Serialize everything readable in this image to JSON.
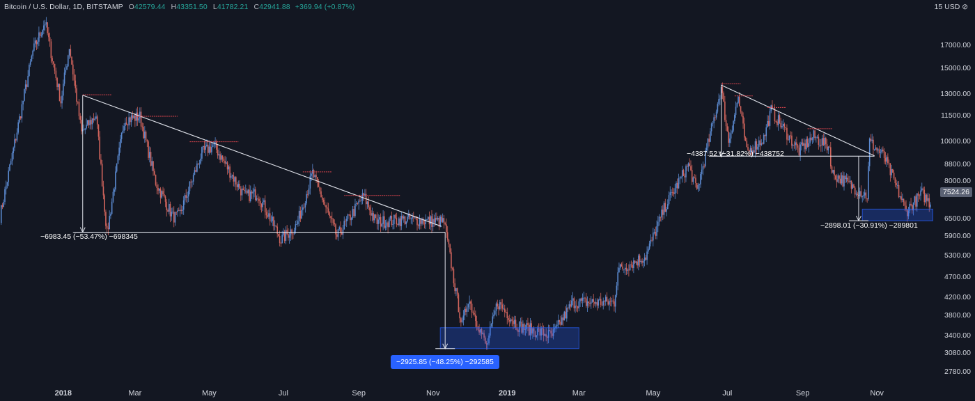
{
  "header": {
    "symbol": "Bitcoin / U.S. Dollar, 1D, BITSTAMP",
    "open_label": "O",
    "open_value": "42579.44",
    "high_label": "H",
    "high_value": "43351.50",
    "low_label": "L",
    "low_value": "41782.21",
    "close_label": "C",
    "close_value": "42941.88",
    "change": "+369.94 (+0.87%)"
  },
  "currency": "15 USD ⊘",
  "last_price": "7524.26",
  "colors": {
    "background": "#131722",
    "up": "#5b8ad0",
    "down": "#d0645c",
    "trendline": "#e0e3eb",
    "resistance": "#e0464e",
    "target_box": "#2962ff"
  },
  "chart_data": {
    "type": "candlestick",
    "symbol": "Bitcoin / U.S. Dollar",
    "interval": "1D",
    "exchange": "BITSTAMP",
    "x_axis": {
      "ticks": [
        "2018",
        "Mar",
        "May",
        "Jul",
        "Sep",
        "Nov",
        "2019",
        "Mar",
        "May",
        "Jul",
        "Sep",
        "Nov"
      ],
      "tick_dates": [
        "2018-01-01",
        "2018-03-01",
        "2018-05-01",
        "2018-07-01",
        "2018-09-01",
        "2018-11-01",
        "2019-01-01",
        "2019-03-01",
        "2019-05-01",
        "2019-07-01",
        "2019-09-01",
        "2019-11-01"
      ],
      "range": [
        "2017-11-10",
        "2019-12-15"
      ]
    },
    "y_axis": {
      "scale": "log",
      "ticks": [
        "17000.00",
        "15000.00",
        "13000.00",
        "11500.00",
        "10000.00",
        "8800.00",
        "8000.00",
        "6500.00",
        "5900.00",
        "5300.00",
        "4700.00",
        "4200.00",
        "3800.00",
        "3400.00",
        "3080.00",
        "2780.00"
      ],
      "tick_values": [
        17000,
        15000,
        13000,
        11500,
        10000,
        8800,
        8000,
        6500,
        5900,
        5300,
        4700,
        4200,
        3800,
        3400,
        3080,
        2780
      ],
      "range": [
        2600,
        20500
      ]
    },
    "price_path": [
      [
        "2017-11-10",
        6600
      ],
      [
        "2017-12-07",
        16500
      ],
      [
        "2017-12-17",
        19500
      ],
      [
        "2017-12-30",
        12500
      ],
      [
        "2018-01-06",
        17000
      ],
      [
        "2018-01-16",
        10500
      ],
      [
        "2018-01-28",
        11600
      ],
      [
        "2018-02-06",
        6000
      ],
      [
        "2018-02-20",
        11300
      ],
      [
        "2018-03-05",
        11500
      ],
      [
        "2018-03-18",
        8000
      ],
      [
        "2018-04-01",
        6600
      ],
      [
        "2018-04-06",
        6600
      ],
      [
        "2018-04-25",
        9400
      ],
      [
        "2018-05-05",
        9800
      ],
      [
        "2018-05-30",
        7400
      ],
      [
        "2018-06-10",
        7500
      ],
      [
        "2018-06-29",
        5800
      ],
      [
        "2018-07-12",
        6300
      ],
      [
        "2018-07-25",
        8400
      ],
      [
        "2018-08-14",
        5900
      ],
      [
        "2018-09-05",
        7400
      ],
      [
        "2018-09-15",
        6400
      ],
      [
        "2018-10-10",
        6500
      ],
      [
        "2018-11-10",
        6400
      ],
      [
        "2018-11-14",
        5500
      ],
      [
        "2018-11-20",
        4300
      ],
      [
        "2018-11-25",
        3600
      ],
      [
        "2018-11-30",
        4200
      ],
      [
        "2018-12-15",
        3200
      ],
      [
        "2018-12-24",
        4100
      ],
      [
        "2019-01-10",
        3600
      ],
      [
        "2019-02-07",
        3400
      ],
      [
        "2019-02-24",
        4100
      ],
      [
        "2019-03-30",
        4100
      ],
      [
        "2019-04-02",
        4900
      ],
      [
        "2019-04-25",
        5300
      ],
      [
        "2019-05-11",
        7000
      ],
      [
        "2019-05-30",
        8800
      ],
      [
        "2019-06-06",
        7600
      ],
      [
        "2019-06-26",
        13500
      ],
      [
        "2019-07-02",
        10000
      ],
      [
        "2019-07-10",
        12800
      ],
      [
        "2019-07-17",
        9400
      ],
      [
        "2019-07-31",
        10200
      ],
      [
        "2019-08-06",
        11900
      ],
      [
        "2019-08-29",
        9500
      ],
      [
        "2019-09-10",
        10300
      ],
      [
        "2019-09-23",
        9700
      ],
      [
        "2019-09-25",
        8400
      ],
      [
        "2019-10-24",
        7400
      ],
      [
        "2019-10-26",
        10000
      ],
      [
        "2019-11-07",
        9200
      ],
      [
        "2019-11-25",
        6800
      ],
      [
        "2019-12-08",
        7500
      ],
      [
        "2019-12-15",
        7100
      ]
    ],
    "annotations": {
      "trendlines": [
        [
          [
            "2018-01-17",
            12950
          ],
          [
            "2018-11-08",
            6250
          ]
        ],
        [
          [
            "2019-06-26",
            13700
          ],
          [
            "2019-10-30",
            9250
          ]
        ]
      ],
      "support_lines": [
        [
          [
            "2018-01-10",
            6050
          ],
          [
            "2018-11-11",
            6050
          ]
        ],
        [
          [
            "2019-06-16",
            9230
          ],
          [
            "2019-10-30",
            9230
          ]
        ]
      ],
      "resistance_ticks": [
        [
          [
            "2018-01-17",
            "2018-02-10",
            12980
          ]
        ],
        [
          [
            "2018-03-01",
            "2018-04-05",
            11520
          ]
        ],
        [
          [
            "2018-04-15",
            "2018-05-25",
            10000
          ]
        ],
        [
          [
            "2018-07-17",
            "2018-08-10",
            8460
          ]
        ],
        [
          [
            "2018-08-20",
            "2018-10-05",
            7420
          ]
        ],
        [
          [
            "2019-06-26",
            "2019-07-12",
            13800
          ]
        ],
        [
          [
            "2019-07-07",
            "2019-07-22",
            12900
          ]
        ],
        [
          [
            "2019-08-03",
            "2019-08-18",
            12100
          ]
        ],
        [
          [
            "2019-09-05",
            "2019-09-25",
            10750
          ]
        ]
      ],
      "target_boxes": [
        [
          [
            "2018-11-07",
            3170
          ],
          [
            "2019-03-01",
            3560
          ]
        ],
        [
          [
            "2019-10-20",
            6450
          ],
          [
            "2019-12-17",
            6880
          ]
        ]
      ],
      "measurements": [
        {
          "label": "−6983.45 (−53.47%) −698345",
          "from": [
            "2018-01-17",
            12950
          ],
          "to": [
            "2018-01-17",
            6050
          ]
        },
        {
          "label": "−2925.85 (−48.25%) −292585",
          "from": [
            "2018-11-11",
            6050
          ],
          "to": [
            "2018-11-11",
            3170
          ]
        },
        {
          "label": "−4387.52 (−31.82%) −438752",
          "from": [
            "2019-06-26",
            13700
          ],
          "to": [
            "2019-06-26",
            9230
          ]
        },
        {
          "label": "−2898.01 (−30.91%) −289801",
          "from": [
            "2019-10-17",
            9230
          ],
          "to": [
            "2019-10-17",
            6450
          ]
        }
      ]
    },
    "last_price": 7524.26
  }
}
